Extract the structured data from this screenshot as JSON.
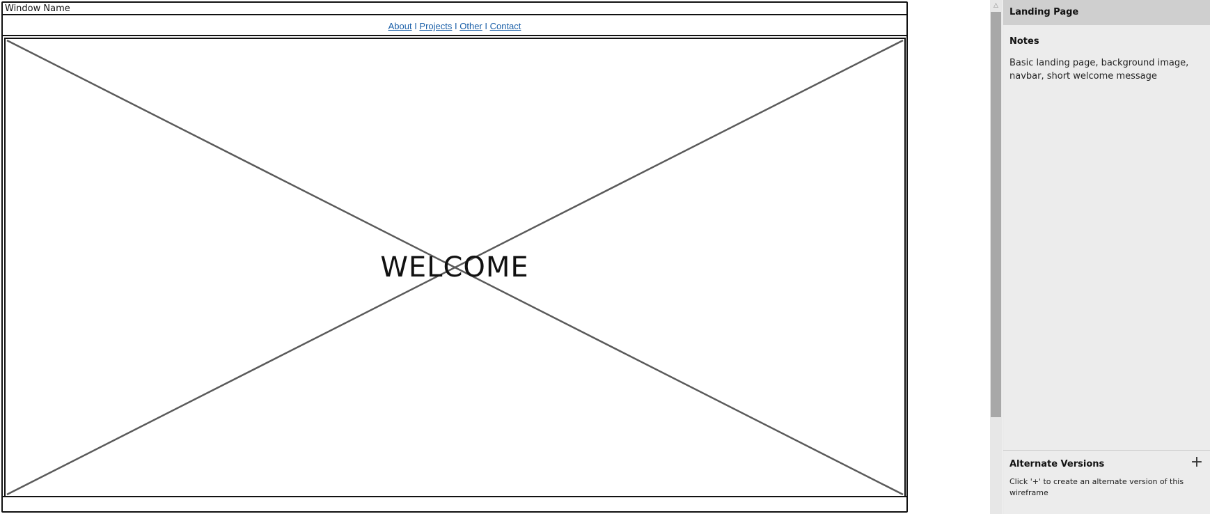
{
  "wireframe": {
    "window_title": "Window Name",
    "nav_links": [
      "About",
      "Projects",
      "Other",
      "Contact"
    ],
    "nav_separator": " I ",
    "hero_text": "WELCOME"
  },
  "scrollbar": {
    "up_arrow": "△"
  },
  "panel": {
    "title": "Landing Page",
    "notes_heading": "Notes",
    "notes_text": "Basic landing page, background image, navbar, short welcome message",
    "alt_heading": "Alternate Versions",
    "alt_add_icon": "+",
    "alt_text": "Click '+' to create an alternate version of this wireframe"
  },
  "colors": {
    "link": "#1a5fa8",
    "panel_bg": "#ececec",
    "panel_header_bg": "#cfcfcf"
  }
}
